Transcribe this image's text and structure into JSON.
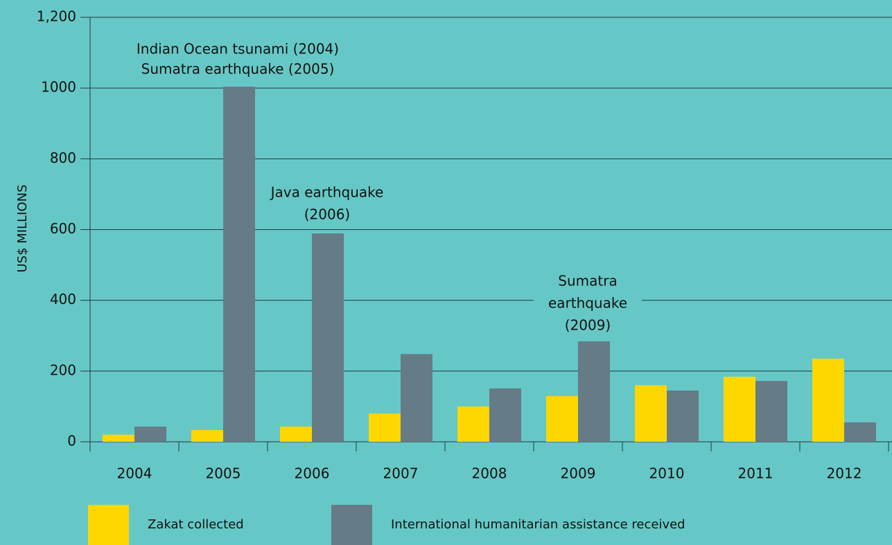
{
  "chart_data": {
    "type": "bar",
    "y_label": "US$ MILLIONS",
    "categories": [
      "2004",
      "2005",
      "2006",
      "2007",
      "2008",
      "2009",
      "2010",
      "2011",
      "2012"
    ],
    "series": [
      {
        "name": "Zakat collected",
        "color": "#ffd700",
        "values": [
          20,
          33,
          43,
          80,
          100,
          129,
          160,
          184,
          235
        ]
      },
      {
        "name": "International humanitarian assistance received",
        "color": "#657b86",
        "values": [
          43,
          1004,
          589,
          248,
          151,
          284,
          145,
          172,
          55
        ]
      }
    ],
    "ylim": [
      0,
      1200
    ],
    "yticks": [
      0,
      200,
      400,
      600,
      800,
      1000,
      {
        "value": 1200,
        "label": "1,200"
      }
    ],
    "grid": true,
    "annotations": [
      [
        "Indian Ocean tsunami (2004)",
        "Sumatra earthquake (2005)"
      ],
      [
        "Java earthquake",
        "(2006)"
      ],
      [
        "Sumatra",
        "earthquake",
        "(2009)"
      ]
    ]
  }
}
